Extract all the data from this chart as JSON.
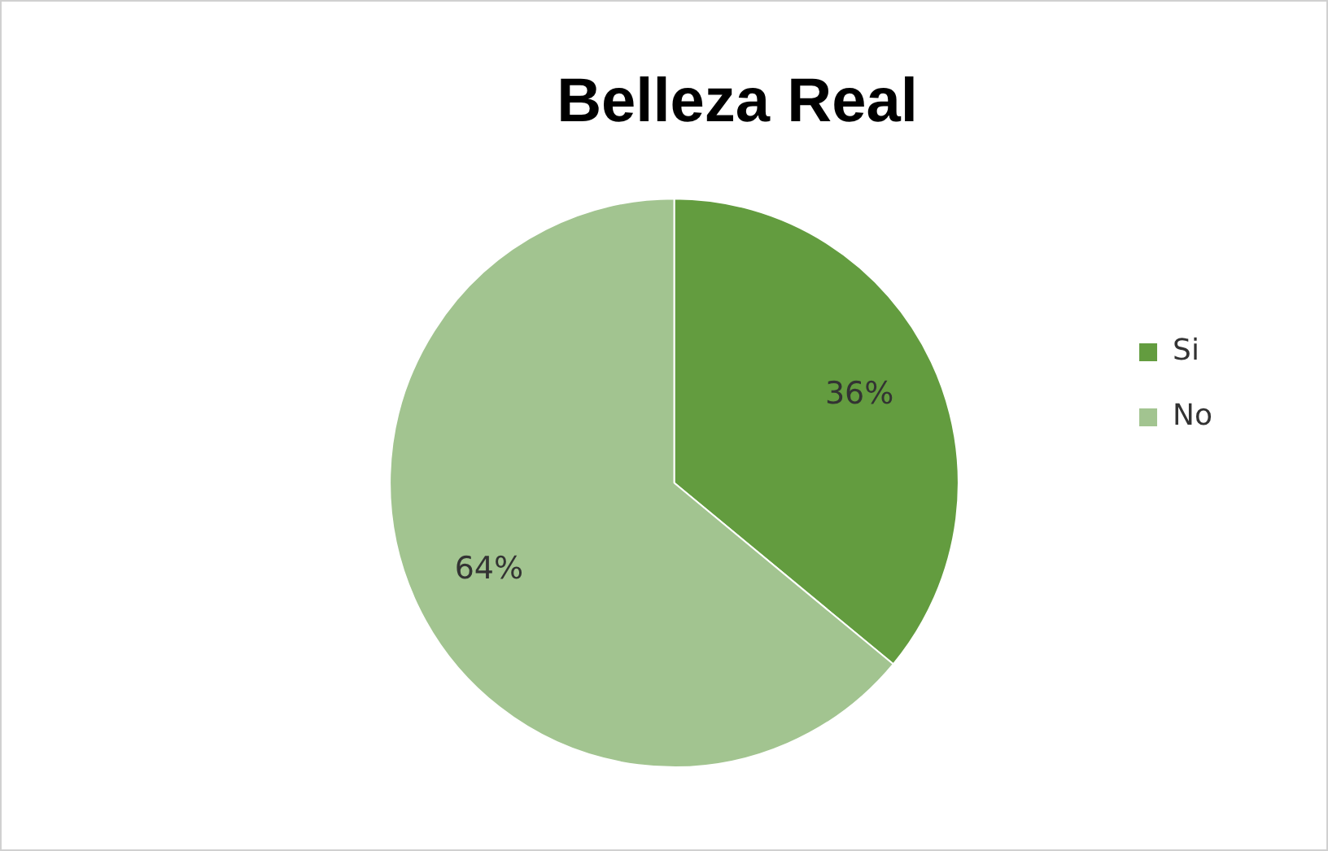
{
  "chart_data": {
    "type": "pie",
    "title": "Belleza Real",
    "categories": [
      "Si",
      "No"
    ],
    "values": [
      36,
      64
    ],
    "colors": [
      "#639c3f",
      "#a2c490"
    ],
    "value_labels": [
      "36%",
      "64%"
    ],
    "legend": "right"
  }
}
